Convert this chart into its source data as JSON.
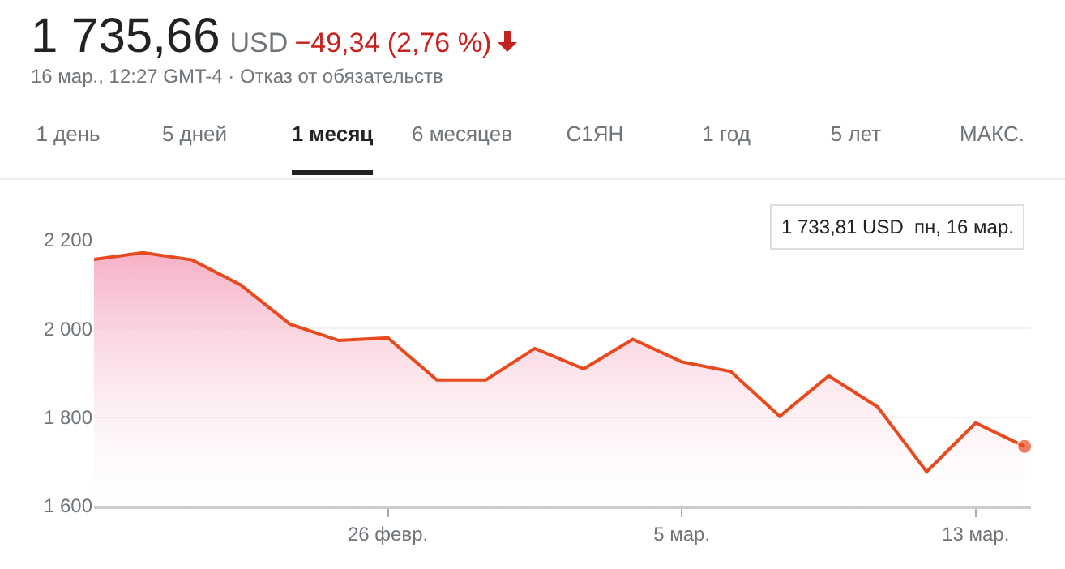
{
  "chart_data": {
    "type": "area",
    "title": "1 735,66",
    "subtitle": "16 мар., 12:27 GMT-4 · Отказ от обязательств",
    "annotations": [
      "USD",
      "−49,34 (2,76 %)",
      "1 день",
      "5 дней",
      "1 месяц",
      "6 месяцев",
      "С1ЯН",
      "1 год",
      "5 лет",
      "МАКС.",
      "1 733,81 USD  пн, 16 мар."
    ],
    "categories": [
      null,
      null,
      null,
      null,
      null,
      null,
      "26 февр.",
      null,
      null,
      null,
      null,
      null,
      "5 мар.",
      null,
      null,
      null,
      null,
      null,
      "13 мар.",
      null
    ],
    "series": [
      {
        "color": "#e8491d",
        "values": [
          2156,
          2171,
          2155,
          2098,
          2010,
          1973,
          1979,
          1884,
          1884,
          1955,
          1909,
          1976,
          1925,
          1903,
          1802,
          1893,
          1823,
          1677,
          1787,
          1733.81
        ]
      }
    ],
    "ylim": [
      1600,
      2200
    ],
    "yticks": [
      {
        "value": 1600,
        "label": "1 600"
      },
      {
        "value": 1800,
        "label": "1 800"
      },
      {
        "value": 2000,
        "label": "2 000"
      },
      {
        "value": 2200,
        "label": "2 200"
      }
    ],
    "grid": "y",
    "legend": false
  }
}
